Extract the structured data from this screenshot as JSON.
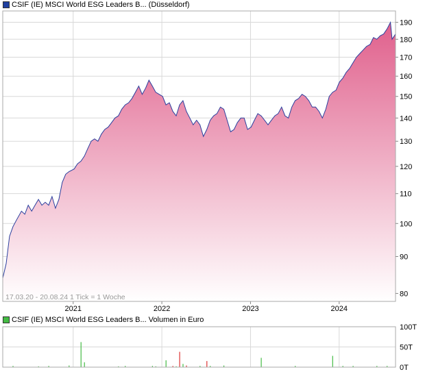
{
  "price_chart": {
    "legend_label": "CSIF (IE) MSCI World ESG Leaders B... (Düsseldorf)",
    "legend_color": "#1f3f9f",
    "footnote": "17.03.20 - 20.08.24   1 Tick = 1 Woche"
  },
  "volume_chart": {
    "legend_label": "CSIF (IE) MSCI World ESG Leaders B... Volumen in Euro",
    "legend_color": "#44bb44"
  },
  "colors": {
    "line": "#2a3f9e",
    "fill_top": "#e0608c",
    "fill_bottom": "#ffffff",
    "volume_up": "#44bb44",
    "volume_down": "#dd3333",
    "grid": "#d8d8d8"
  },
  "chart_data": [
    {
      "type": "area",
      "title": "CSIF (IE) MSCI World ESG Leaders B... (Düsseldorf)",
      "x_range": [
        "2020-03-17",
        "2024-08-20"
      ],
      "x_tick_labels": [
        "2021",
        "2022",
        "2023",
        "2024"
      ],
      "x_ticks": [
        "2021-01-01",
        "2022-01-01",
        "2023-01-01",
        "2024-01-01"
      ],
      "y_scale": "log",
      "ylim": [
        78,
        197
      ],
      "y_ticks": [
        80,
        90,
        100,
        110,
        120,
        130,
        140,
        150,
        160,
        170,
        180,
        190
      ],
      "grid": true,
      "series": [
        {
          "name": "CSIF (IE) MSCI World ESG Leaders B...",
          "x": [
            "2020-03-17",
            "2020-03-31",
            "2020-04-14",
            "2020-04-28",
            "2020-05-12",
            "2020-06-02",
            "2020-06-16",
            "2020-06-30",
            "2020-07-14",
            "2020-07-28",
            "2020-08-11",
            "2020-08-25",
            "2020-09-08",
            "2020-09-22",
            "2020-10-06",
            "2020-10-20",
            "2020-11-03",
            "2020-11-17",
            "2020-12-01",
            "2020-12-15",
            "2021-01-05",
            "2021-01-19",
            "2021-02-02",
            "2021-02-16",
            "2021-03-02",
            "2021-03-16",
            "2021-03-30",
            "2021-04-13",
            "2021-04-27",
            "2021-05-11",
            "2021-05-25",
            "2021-06-08",
            "2021-06-22",
            "2021-07-06",
            "2021-07-20",
            "2021-08-03",
            "2021-08-17",
            "2021-08-31",
            "2021-09-14",
            "2021-09-28",
            "2021-10-12",
            "2021-10-26",
            "2021-11-09",
            "2021-11-23",
            "2021-12-07",
            "2021-12-21",
            "2022-01-04",
            "2022-01-18",
            "2022-02-01",
            "2022-02-15",
            "2022-03-01",
            "2022-03-15",
            "2022-03-29",
            "2022-04-12",
            "2022-04-26",
            "2022-05-10",
            "2022-05-24",
            "2022-06-07",
            "2022-06-21",
            "2022-07-05",
            "2022-07-19",
            "2022-08-02",
            "2022-08-16",
            "2022-08-30",
            "2022-09-13",
            "2022-09-27",
            "2022-10-11",
            "2022-10-25",
            "2022-11-08",
            "2022-11-22",
            "2022-12-06",
            "2022-12-20",
            "2023-01-03",
            "2023-01-17",
            "2023-01-31",
            "2023-02-14",
            "2023-02-28",
            "2023-03-14",
            "2023-03-28",
            "2023-04-11",
            "2023-04-25",
            "2023-05-09",
            "2023-05-23",
            "2023-06-06",
            "2023-06-20",
            "2023-07-04",
            "2023-07-18",
            "2023-08-01",
            "2023-08-15",
            "2023-08-29",
            "2023-09-12",
            "2023-09-26",
            "2023-10-10",
            "2023-10-24",
            "2023-11-07",
            "2023-11-21",
            "2023-12-05",
            "2023-12-19",
            "2024-01-02",
            "2024-01-16",
            "2024-01-30",
            "2024-02-13",
            "2024-02-27",
            "2024-03-12",
            "2024-03-26",
            "2024-04-09",
            "2024-04-23",
            "2024-05-07",
            "2024-05-21",
            "2024-06-04",
            "2024-06-18",
            "2024-07-02",
            "2024-07-16",
            "2024-07-30",
            "2024-08-06",
            "2024-08-20"
          ],
          "values": [
            84,
            88,
            96,
            99,
            101,
            104,
            103,
            106,
            104,
            106,
            108,
            106,
            107,
            106,
            109,
            105,
            108,
            114,
            117,
            118,
            119,
            121,
            122,
            124,
            127,
            130,
            131,
            130,
            133,
            135,
            136,
            138,
            140,
            141,
            144,
            146,
            147,
            149,
            152,
            155,
            151,
            154,
            158,
            155,
            152,
            151,
            150,
            146,
            147,
            143,
            141,
            146,
            148,
            143,
            140,
            137,
            139,
            137,
            132,
            135,
            139,
            141,
            142,
            145,
            144,
            139,
            134,
            135,
            138,
            140,
            140,
            135,
            136,
            139,
            142,
            141,
            139,
            137,
            139,
            141,
            142,
            145,
            141,
            140,
            145,
            148,
            149,
            151,
            150,
            148,
            145,
            145,
            143,
            140,
            144,
            150,
            152,
            153,
            157,
            159,
            162,
            164,
            167,
            170,
            172,
            174,
            176,
            177,
            181,
            180,
            182,
            183,
            186,
            190,
            180,
            183
          ]
        }
      ]
    },
    {
      "type": "bar",
      "title": "CSIF (IE) MSCI World ESG Leaders B... Volumen in Euro",
      "ylim": [
        0,
        100000
      ],
      "y_tick_labels": [
        "0T",
        "50T",
        "100T"
      ],
      "y_ticks": [
        0,
        50000,
        100000
      ],
      "grid": true,
      "series": [
        {
          "name": "Volumen in Euro",
          "x": [
            "2020-04-28",
            "2020-08-11",
            "2020-09-22",
            "2020-12-15",
            "2021-02-02",
            "2021-02-16",
            "2021-07-06",
            "2021-08-03",
            "2021-11-23",
            "2021-12-07",
            "2022-01-18",
            "2022-02-15",
            "2022-03-01",
            "2022-03-15",
            "2022-03-29",
            "2022-04-12",
            "2022-06-07",
            "2022-07-05",
            "2022-07-19",
            "2022-09-13",
            "2023-02-14",
            "2023-07-04",
            "2023-12-05",
            "2024-01-16",
            "2024-02-27",
            "2024-06-04",
            "2024-07-16"
          ],
          "values": [
            3000,
            2000,
            3000,
            4000,
            62000,
            12000,
            2000,
            3000,
            3000,
            2000,
            17000,
            3000,
            2000,
            38000,
            8000,
            4000,
            3000,
            15000,
            3000,
            4000,
            23000,
            3000,
            28000,
            3000,
            3000,
            3000,
            3000
          ],
          "directions": [
            "up",
            "up",
            "up",
            "up",
            "up",
            "up",
            "up",
            "up",
            "up",
            "up",
            "up",
            "down",
            "up",
            "down",
            "up",
            "down",
            "up",
            "down",
            "up",
            "up",
            "up",
            "up",
            "up",
            "up",
            "up",
            "up",
            "up"
          ]
        }
      ]
    }
  ]
}
